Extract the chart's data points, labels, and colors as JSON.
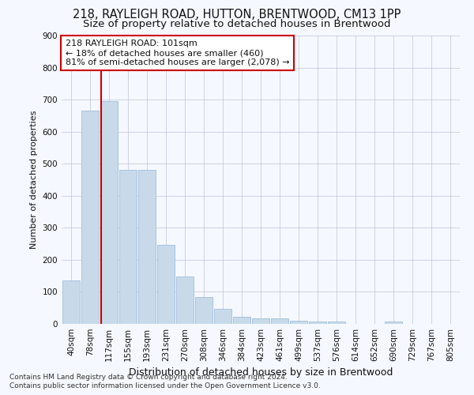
{
  "title_line1": "218, RAYLEIGH ROAD, HUTTON, BRENTWOOD, CM13 1PP",
  "title_line2": "Size of property relative to detached houses in Brentwood",
  "xlabel": "Distribution of detached houses by size in Brentwood",
  "ylabel": "Number of detached properties",
  "bar_labels": [
    "40sqm",
    "78sqm",
    "117sqm",
    "155sqm",
    "193sqm",
    "231sqm",
    "270sqm",
    "308sqm",
    "346sqm",
    "384sqm",
    "423sqm",
    "461sqm",
    "499sqm",
    "537sqm",
    "576sqm",
    "614sqm",
    "652sqm",
    "690sqm",
    "729sqm",
    "767sqm",
    "805sqm"
  ],
  "bar_values": [
    135,
    665,
    695,
    480,
    480,
    247,
    147,
    85,
    48,
    22,
    18,
    17,
    10,
    8,
    8,
    0,
    0,
    8,
    0,
    0,
    0
  ],
  "bar_color": "#c8daea",
  "bar_edge_color": "#a0bedc",
  "vline_color": "#cc0000",
  "vline_x": 1.575,
  "annotation_line1": "218 RAYLEIGH ROAD: 101sqm",
  "annotation_line2": "← 18% of detached houses are smaller (460)",
  "annotation_line3": "81% of semi-detached houses are larger (2,078) →",
  "annotation_box_color": "#cc0000",
  "ylim": [
    0,
    900
  ],
  "yticks": [
    0,
    100,
    200,
    300,
    400,
    500,
    600,
    700,
    800,
    900
  ],
  "footnote_line1": "Contains HM Land Registry data © Crown copyright and database right 2024.",
  "footnote_line2": "Contains public sector information licensed under the Open Government Licence v3.0.",
  "bg_color": "#f5f8ff",
  "plot_bg_color": "#f5f8ff",
  "grid_color": "#b0b8cc",
  "title_fontsize": 10.5,
  "subtitle_fontsize": 9.5,
  "ylabel_fontsize": 8,
  "xlabel_fontsize": 9,
  "tick_fontsize": 7.5,
  "annotation_fontsize": 8,
  "footnote_fontsize": 6.5
}
